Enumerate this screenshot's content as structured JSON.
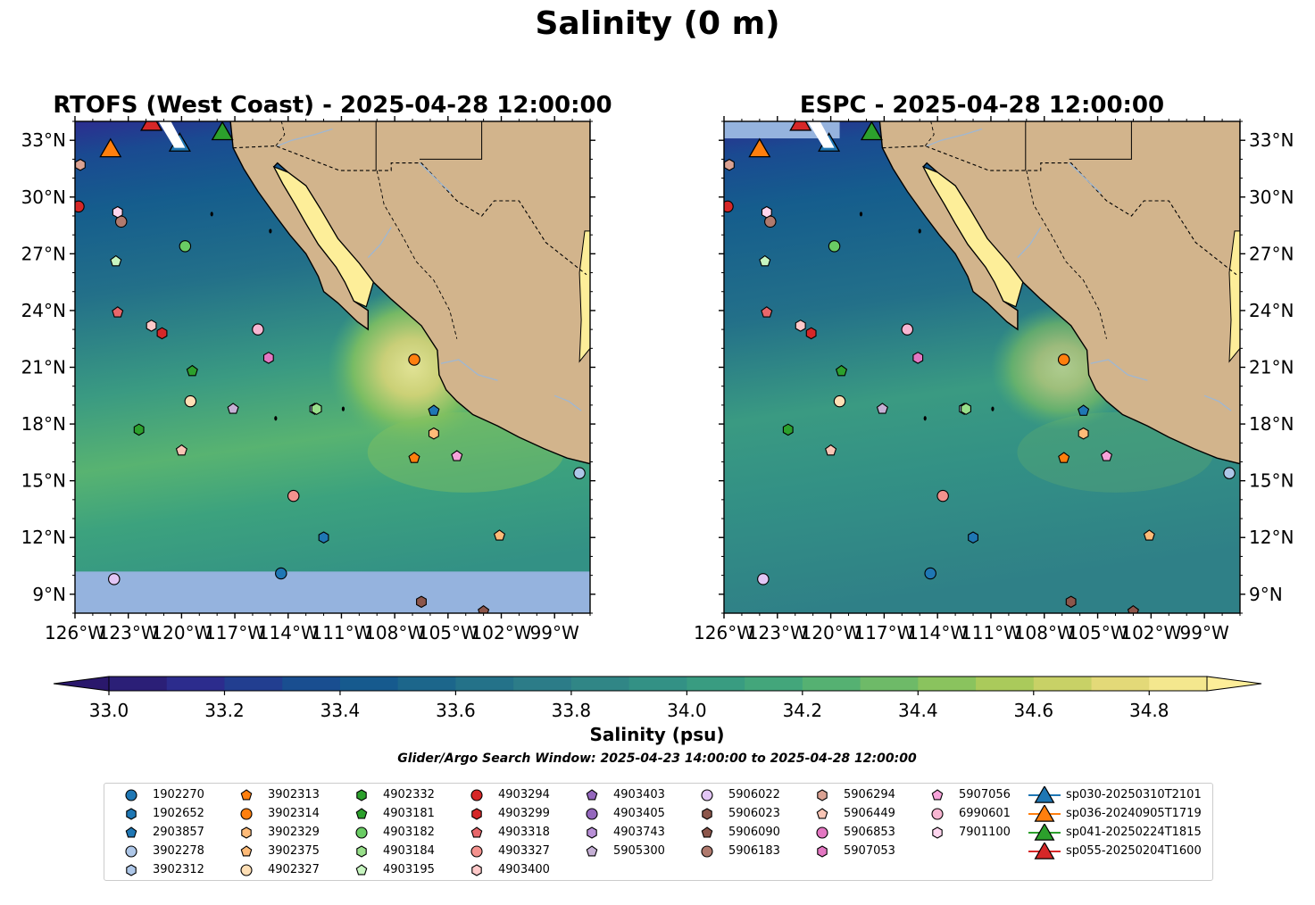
{
  "title": "Salinity (0 m)",
  "colors": {
    "land": "#d2b48c",
    "nodata": "#95b3de",
    "coast": "#000000",
    "rivers": "#9fb7d2"
  },
  "colorbar": {
    "label": "Salinity (psu)",
    "min": 33.0,
    "max": 34.9,
    "step": 0.1,
    "ticks": [
      33.0,
      33.2,
      33.4,
      33.6,
      33.8,
      34.0,
      34.2,
      34.4,
      34.6,
      34.8
    ],
    "tick_labels": [
      "33.0",
      "33.2",
      "33.4",
      "33.6",
      "33.8",
      "34.0",
      "34.2",
      "34.4",
      "34.6",
      "34.8"
    ],
    "extend": "both",
    "colormap": "haline",
    "stops": [
      "#2a186c",
      "#2c2d8f",
      "#1a4a91",
      "#155d8d",
      "#237089",
      "#2f8087",
      "#339185",
      "#3ca27e",
      "#58b371",
      "#82c15f",
      "#b5cc5a",
      "#e2d876",
      "#fdee99"
    ]
  },
  "search_window": "Glider/Argo Search Window: 2025-04-23 14:00:00 to 2025-04-28 12:00:00",
  "panels": [
    {
      "title": "RTOFS (West Coast) - 2025-04-28 12:00:00",
      "lat_ticks": [
        "33°N",
        "30°N",
        "27°N",
        "24°N",
        "21°N",
        "18°N",
        "15°N",
        "12°N",
        "9°N"
      ],
      "lon_ticks": [
        "126°W",
        "123°W",
        "120°W",
        "117°W",
        "114°W",
        "111°W",
        "108°W",
        "105°W",
        "102°W",
        "99°W"
      ],
      "lat_label_side": "left",
      "lon_range": [
        -126,
        -97
      ],
      "lat_range": [
        8,
        34
      ],
      "nodata_lat_below": 10.2
    },
    {
      "title": "ESPC - 2025-04-28 12:00:00",
      "lat_ticks": [
        "33°N",
        "30°N",
        "27°N",
        "24°N",
        "21°N",
        "18°N",
        "15°N",
        "12°N",
        "9°N"
      ],
      "lon_ticks": [
        "126°W",
        "123°W",
        "120°W",
        "117°W",
        "114°W",
        "111°W",
        "108°W",
        "105°W",
        "102°W",
        "99°W"
      ],
      "lat_label_side": "right",
      "lon_range": [
        -126,
        -97
      ],
      "lat_range": [
        8,
        34
      ],
      "nodata_lat_above": 33.1
    }
  ],
  "floats": [
    {
      "id": "1902270",
      "marker": "circle",
      "color": "#1f77b4",
      "lon": -114.4,
      "lat": 10.1
    },
    {
      "id": "1902652",
      "marker": "hexagon",
      "color": "#1f77b4",
      "lon": -112.0,
      "lat": 12.0
    },
    {
      "id": "2903857",
      "marker": "pentagon",
      "color": "#1f77b4",
      "lon": -105.8,
      "lat": 18.7
    },
    {
      "id": "3902278",
      "marker": "circle",
      "color": "#aec7e8",
      "lon": -97.6,
      "lat": 15.4
    },
    {
      "id": "3902312",
      "marker": "hexagon",
      "color": "#aec7e8",
      "lon": -112.5,
      "lat": 18.8
    },
    {
      "id": "3902313",
      "marker": "pentagon",
      "color": "#ff7f0e",
      "lon": -106.9,
      "lat": 16.2
    },
    {
      "id": "3902314",
      "marker": "circle",
      "color": "#ff7f0e",
      "lon": -106.9,
      "lat": 21.4
    },
    {
      "id": "3902329",
      "marker": "hexagon",
      "color": "#ffbb78",
      "lon": -105.8,
      "lat": 17.5
    },
    {
      "id": "3902375",
      "marker": "pentagon",
      "color": "#ffbb78",
      "lon": -102.1,
      "lat": 12.1
    },
    {
      "id": "4902327",
      "marker": "circle",
      "color": "#ffdfb5",
      "lon": -119.5,
      "lat": 19.2
    },
    {
      "id": "4902332",
      "marker": "hexagon",
      "color": "#2ca02c",
      "lon": -122.4,
      "lat": 17.7
    },
    {
      "id": "4903181",
      "marker": "pentagon",
      "color": "#2ca02c",
      "lon": -119.4,
      "lat": 20.8
    },
    {
      "id": "4903182",
      "marker": "circle",
      "color": "#6acc64",
      "lon": -119.8,
      "lat": 27.4
    },
    {
      "id": "4903184",
      "marker": "hexagon",
      "color": "#98df8a",
      "lon": -112.4,
      "lat": 18.8
    },
    {
      "id": "4903195",
      "marker": "pentagon",
      "color": "#c7f5c0",
      "lon": -123.7,
      "lat": 26.6
    },
    {
      "id": "4903294",
      "marker": "circle",
      "color": "#d62728",
      "lon": -125.8,
      "lat": 29.5
    },
    {
      "id": "4903299",
      "marker": "hexagon",
      "color": "#d62728",
      "lon": -121.1,
      "lat": 22.8
    },
    {
      "id": "4903318",
      "marker": "pentagon",
      "color": "#e8676b",
      "lon": -123.6,
      "lat": 23.9
    },
    {
      "id": "4903327",
      "marker": "circle",
      "color": "#f4928e",
      "lon": -113.7,
      "lat": 14.2
    },
    {
      "id": "4903400",
      "marker": "hexagon",
      "color": "#ffc9c9",
      "lon": -121.7,
      "lat": 23.2
    },
    {
      "id": "4903403",
      "marker": "pentagon",
      "color": "#9467bd",
      "lon": -100.0,
      "lat": 25.0,
      "hidden": true
    },
    {
      "id": "4903405",
      "marker": "circle",
      "color": "#9467bd",
      "lon": -100.0,
      "lat": 25.0,
      "hidden": true
    },
    {
      "id": "4903743",
      "marker": "hexagon",
      "color": "#b88fd6",
      "lon": -100.0,
      "lat": 25.0,
      "hidden": true
    },
    {
      "id": "5905300",
      "marker": "pentagon",
      "color": "#c5b0d5",
      "lon": -117.1,
      "lat": 18.8
    },
    {
      "id": "5906022",
      "marker": "circle",
      "color": "#e2c6f5",
      "lon": -123.8,
      "lat": 9.8
    },
    {
      "id": "5906023",
      "marker": "hexagon",
      "color": "#8c564b",
      "lon": -106.5,
      "lat": 8.6
    },
    {
      "id": "5906090",
      "marker": "pentagon",
      "color": "#8c564b",
      "lon": -103.0,
      "lat": 8.1
    },
    {
      "id": "5906183",
      "marker": "circle",
      "color": "#b07a6e",
      "lon": -123.4,
      "lat": 28.7
    },
    {
      "id": "5906294",
      "marker": "hexagon",
      "color": "#dba293",
      "lon": -125.7,
      "lat": 31.7
    },
    {
      "id": "5906449",
      "marker": "pentagon",
      "color": "#f9c5b5",
      "lon": -120.0,
      "lat": 16.6
    },
    {
      "id": "5906853",
      "marker": "circle",
      "color": "#e377c2",
      "lon": -100.0,
      "lat": 25.0,
      "hidden": true
    },
    {
      "id": "5907053",
      "marker": "hexagon",
      "color": "#e377c2",
      "lon": -115.1,
      "lat": 21.5
    },
    {
      "id": "5907056",
      "marker": "pentagon",
      "color": "#f7a3da",
      "lon": -104.5,
      "lat": 16.3
    },
    {
      "id": "6990601",
      "marker": "circle",
      "color": "#f7b6d2",
      "lon": -115.7,
      "lat": 23.0
    },
    {
      "id": "7901100",
      "marker": "hexagon",
      "color": "#ffd6ef",
      "lon": -123.6,
      "lat": 29.2
    }
  ],
  "gliders": [
    {
      "id": "sp030-20250310T2101",
      "color": "#1f77b4",
      "lon": -120.1,
      "lat": 32.8
    },
    {
      "id": "sp036-20240905T1719",
      "color": "#ff7f0e",
      "lon": -124.0,
      "lat": 32.5
    },
    {
      "id": "sp041-20250224T1815",
      "color": "#2ca02c",
      "lon": -117.7,
      "lat": 33.4
    },
    {
      "id": "sp055-20250204T1600",
      "color": "#d62728",
      "lon": -121.7,
      "lat": 33.9
    }
  ]
}
